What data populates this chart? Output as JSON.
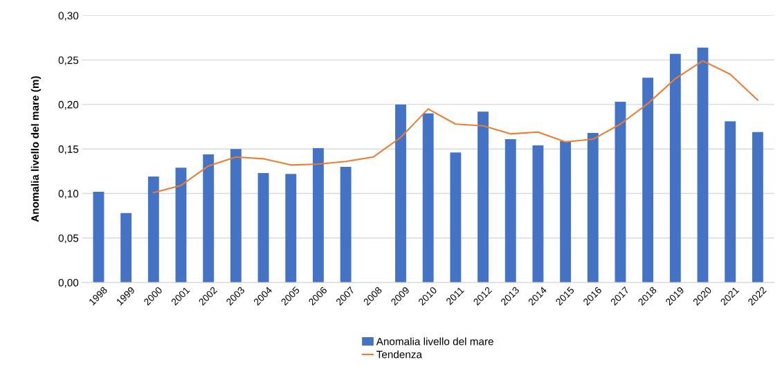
{
  "chart_data": {
    "type": "bar",
    "ylabel": "Anomalia livello del mare (m)",
    "categories": [
      "1998",
      "1999",
      "2000",
      "2001",
      "2002",
      "2003",
      "2004",
      "2005",
      "2006",
      "2007",
      "2008",
      "2009",
      "2010",
      "2011",
      "2012",
      "2013",
      "2014",
      "2015",
      "2016",
      "2017",
      "2018",
      "2019",
      "2020",
      "2021",
      "2022"
    ],
    "series": [
      {
        "name": "Anomalia livello del mare",
        "color": "#4472c4",
        "values": [
          0.102,
          0.078,
          0.119,
          0.129,
          0.144,
          0.15,
          0.123,
          0.122,
          0.151,
          0.13,
          null,
          0.2,
          0.19,
          0.146,
          0.192,
          0.161,
          0.154,
          0.159,
          0.168,
          0.203,
          0.23,
          0.257,
          0.264,
          0.181,
          0.169
        ]
      },
      {
        "name": "Tendenza",
        "type": "line",
        "color": "#ed7d31",
        "values": [
          null,
          null,
          0.101,
          0.109,
          0.131,
          0.141,
          0.139,
          0.132,
          0.133,
          0.136,
          0.141,
          0.163,
          0.195,
          0.178,
          0.176,
          0.167,
          0.169,
          0.158,
          0.161,
          0.178,
          0.201,
          0.229,
          0.249,
          0.234,
          0.205
        ]
      }
    ],
    "ylim": [
      0,
      0.3
    ],
    "yticks": [
      {
        "value": 0,
        "label": "0,00"
      },
      {
        "value": 0.05,
        "label": "0,05"
      },
      {
        "value": 0.1,
        "label": "0,10"
      },
      {
        "value": 0.15,
        "label": "0,15"
      },
      {
        "value": 0.2,
        "label": "0,20"
      },
      {
        "value": 0.25,
        "label": "0,25"
      },
      {
        "value": 0.3,
        "label": "0,30"
      }
    ],
    "grid": "y",
    "legend": "bottom"
  }
}
